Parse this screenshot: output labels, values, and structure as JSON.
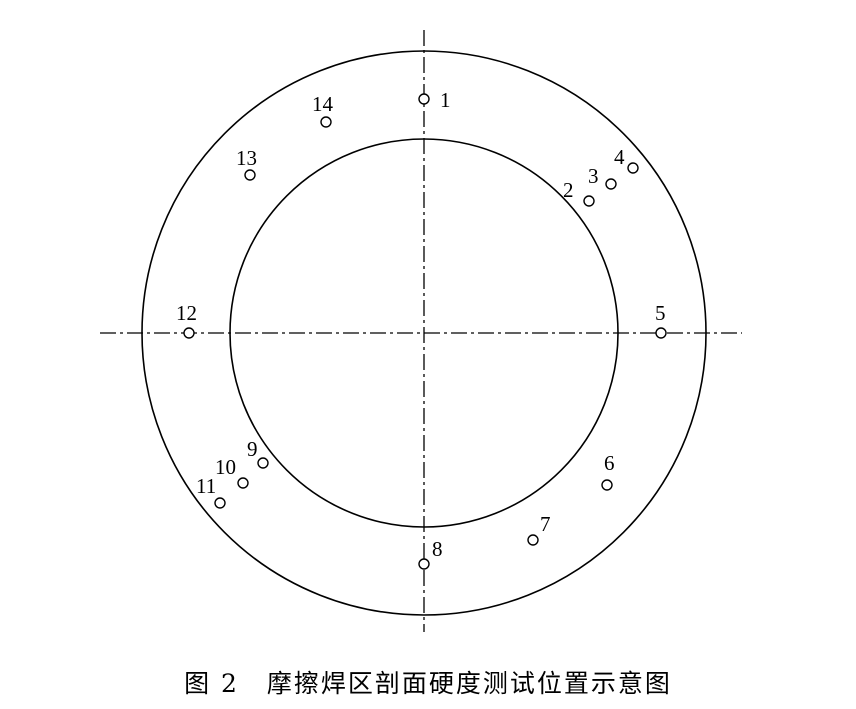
{
  "caption": {
    "figure": "图 2",
    "title": "摩擦焊区剖面硬度测试位置示意图"
  },
  "points": [
    {
      "label": "1"
    },
    {
      "label": "2"
    },
    {
      "label": "3"
    },
    {
      "label": "4"
    },
    {
      "label": "5"
    },
    {
      "label": "6"
    },
    {
      "label": "7"
    },
    {
      "label": "8"
    },
    {
      "label": "9"
    },
    {
      "label": "10"
    },
    {
      "label": "11"
    },
    {
      "label": "12"
    },
    {
      "label": "13"
    },
    {
      "label": "14"
    }
  ]
}
